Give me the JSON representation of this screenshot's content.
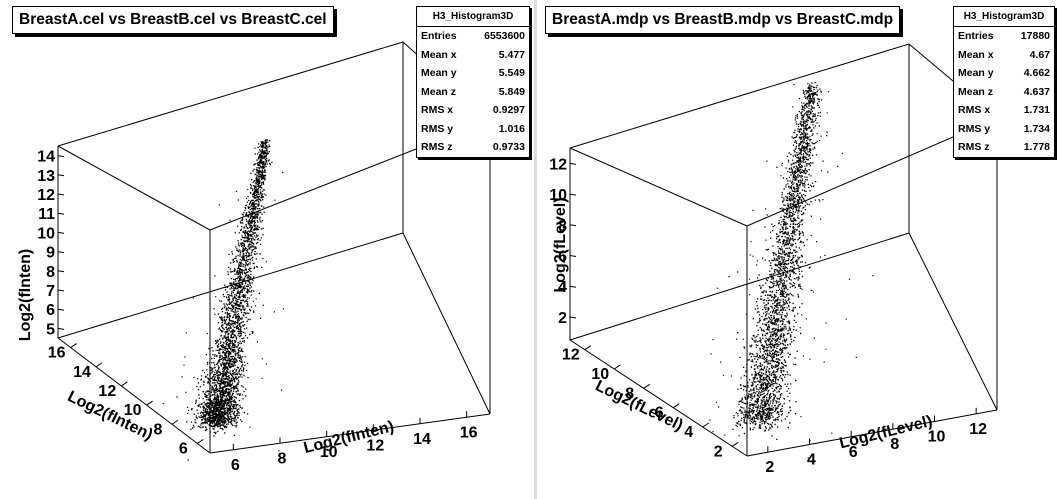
{
  "panels": [
    {
      "title": "BreastA.cel vs BreastB.cel vs BreastC.cel",
      "stats": {
        "name": "H3_Histogram3D",
        "rows": [
          {
            "label": "Entries",
            "value": "6553600"
          },
          {
            "label": "Mean x",
            "value": "5.477"
          },
          {
            "label": "Mean y",
            "value": "5.549"
          },
          {
            "label": "Mean z",
            "value": "5.849"
          },
          {
            "label": "RMS x",
            "value": "0.9297"
          },
          {
            "label": "RMS y",
            "value": "1.016"
          },
          {
            "label": "RMS z",
            "value": "0.9733"
          }
        ]
      }
    },
    {
      "title": "BreastA.mdp vs BreastB.mdp vs BreastC.mdp",
      "stats": {
        "name": "H3_Histogram3D",
        "rows": [
          {
            "label": "Entries",
            "value": "17880"
          },
          {
            "label": "Mean x",
            "value": "4.67"
          },
          {
            "label": "Mean y",
            "value": "4.662"
          },
          {
            "label": "Mean z",
            "value": "4.637"
          },
          {
            "label": "RMS x",
            "value": "1.731"
          },
          {
            "label": "RMS y",
            "value": "1.734"
          },
          {
            "label": "RMS z",
            "value": "1.778"
          }
        ]
      }
    }
  ],
  "chart_data": [
    {
      "type": "scatter",
      "title": "BreastA.cel vs BreastB.cel vs BreastC.cel",
      "xlabel": "Log2(fInten)",
      "ylabel": "Log2(fInten)",
      "zlabel": "Log2(fInten)",
      "x_ticks": [
        "6",
        "8",
        "10",
        "12",
        "14",
        "16"
      ],
      "y_ticks": [
        "6",
        "8",
        "10",
        "12",
        "14",
        "16"
      ],
      "z_ticks": [
        "5",
        "6",
        "7",
        "8",
        "9",
        "10",
        "11",
        "12",
        "13",
        "14"
      ],
      "xlim": [
        5,
        17
      ],
      "ylim": [
        5,
        17
      ],
      "zlim": [
        4.5,
        14.5
      ],
      "grid": false,
      "legend": "none",
      "color": "#000000",
      "point_summary": {
        "entries": 6553600,
        "mean": [
          5.477,
          5.549,
          5.849
        ],
        "rms": [
          0.9297,
          1.016,
          0.9733
        ]
      }
    },
    {
      "type": "scatter",
      "title": "BreastA.mdp vs BreastB.mdp vs BreastC.mdp",
      "xlabel": "Log2(fLevel)",
      "ylabel": "Log2(fLevel)",
      "zlabel": "Log2(fLevel)",
      "x_ticks": [
        "2",
        "4",
        "6",
        "8",
        "10",
        "12"
      ],
      "y_ticks": [
        "2",
        "4",
        "6",
        "8",
        "10",
        "12"
      ],
      "z_ticks": [
        "2",
        "4",
        "6",
        "8",
        "10",
        "12"
      ],
      "xlim": [
        1,
        13
      ],
      "ylim": [
        1,
        13
      ],
      "zlim": [
        0.5,
        13
      ],
      "grid": false,
      "legend": "none",
      "color": "#000000",
      "point_summary": {
        "entries": 17880,
        "mean": [
          4.67,
          4.662,
          4.637
        ],
        "rms": [
          1.731,
          1.734,
          1.778
        ]
      }
    }
  ]
}
